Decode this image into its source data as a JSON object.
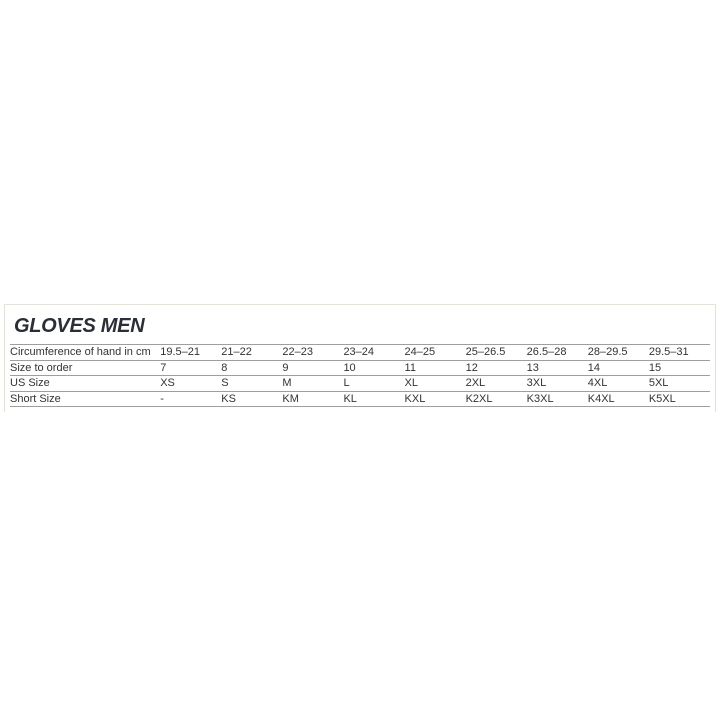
{
  "title": "GLOVES MEN",
  "chart_data": {
    "type": "table",
    "title": "GLOVES MEN",
    "row_headers": [
      "Circumference of hand in cm",
      "Size to order",
      "US Size",
      "Short Size"
    ],
    "rows": [
      [
        "19.5–21",
        "21–22",
        "22–23",
        "23–24",
        "24–25",
        "25–26.5",
        "26.5–28",
        "28–29.5",
        "29.5–31"
      ],
      [
        "7",
        "8",
        "9",
        "10",
        "11",
        "12",
        "13",
        "14",
        "15"
      ],
      [
        "XS",
        "S",
        "M",
        "L",
        "XL",
        "2XL",
        "3XL",
        "4XL",
        "5XL"
      ],
      [
        "-",
        "KS",
        "KM",
        "KL",
        "KXL",
        "K2XL",
        "K3XL",
        "K4XL",
        "K5XL"
      ]
    ],
    "legend_position": "none",
    "grid": "horizontal-lines-only"
  },
  "colors": {
    "title_text": "#2b2e37",
    "body_text": "#333333",
    "row_line": "#9e9e9e",
    "panel_border": "#e5e2da",
    "background": "#ffffff"
  }
}
